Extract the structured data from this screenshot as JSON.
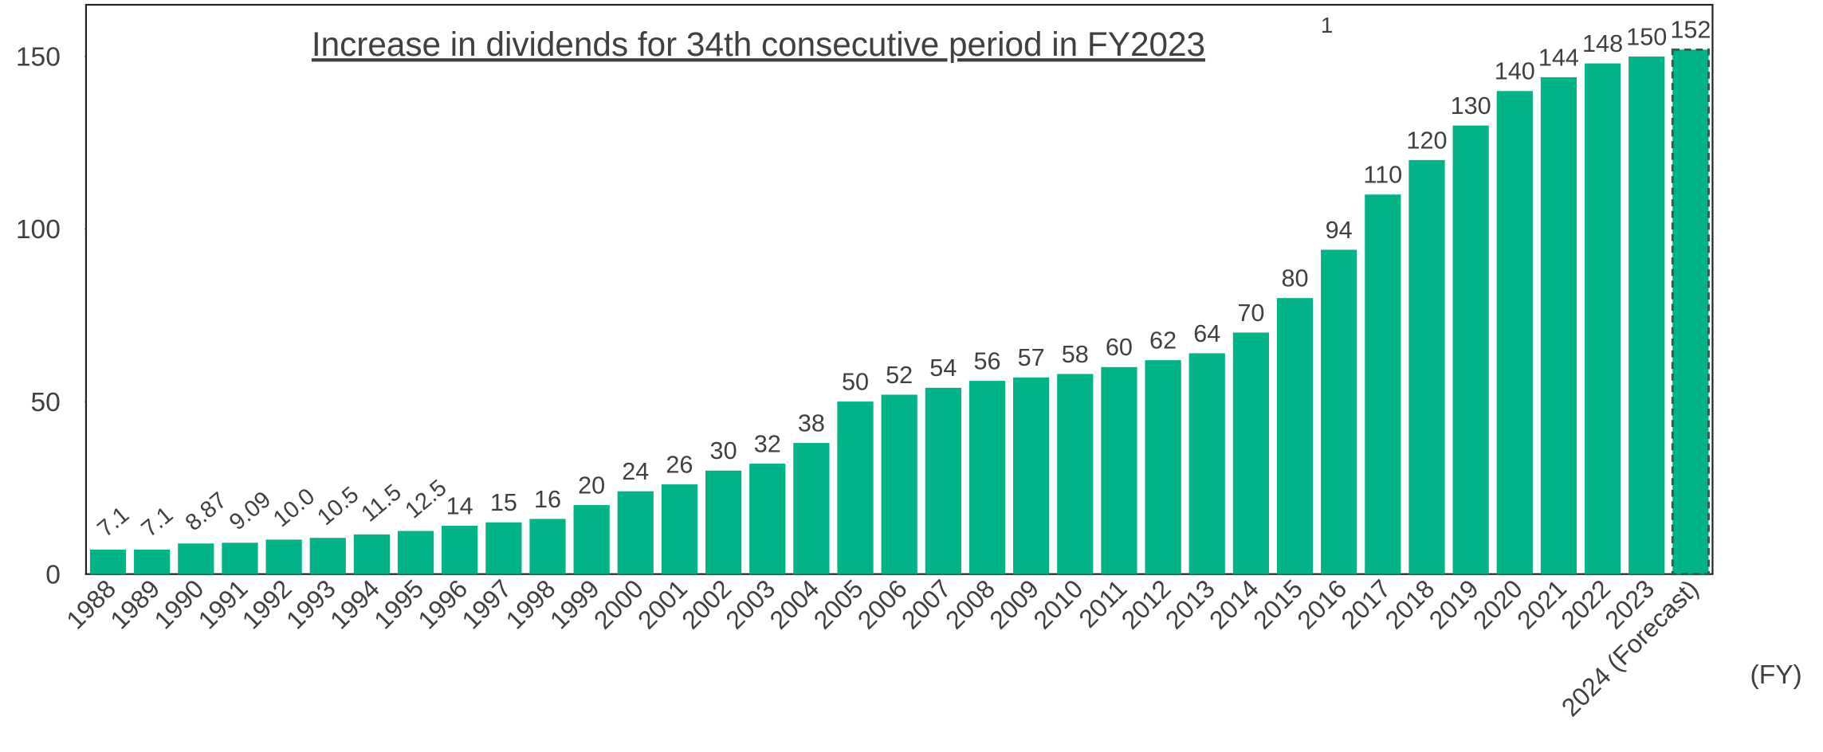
{
  "chart_data": {
    "type": "bar",
    "title": "Increase in dividends for 34th consecutive period in FY2023",
    "title_note": "1",
    "x_label": "(FY)",
    "categories": [
      "1988",
      "1989",
      "1990",
      "1991",
      "1992",
      "1993",
      "1994",
      "1995",
      "1996",
      "1997",
      "1998",
      "1999",
      "2000",
      "2001",
      "2002",
      "2003",
      "2004",
      "2005",
      "2006",
      "2007",
      "2008",
      "2009",
      "2010",
      "2011",
      "2012",
      "2013",
      "2014",
      "2015",
      "2016",
      "2017",
      "2018",
      "2019",
      "2020",
      "2021",
      "2022",
      "2023",
      "2024 (Forecast)"
    ],
    "values": [
      7.1,
      7.1,
      8.87,
      9.09,
      10.0,
      10.5,
      11.5,
      12.5,
      14,
      15,
      16,
      20,
      24,
      26,
      30,
      32,
      38,
      50,
      52,
      54,
      56,
      57,
      58,
      60,
      62,
      64,
      70,
      80,
      94,
      110,
      120,
      130,
      140,
      144,
      148,
      150,
      152
    ],
    "value_labels": [
      "7.1",
      "7.1",
      "8.87",
      "9.09",
      "10.0",
      "10.5",
      "11.5",
      "12.5",
      "14",
      "15",
      "16",
      "20",
      "24",
      "26",
      "30",
      "32",
      "38",
      "50",
      "52",
      "54",
      "56",
      "57",
      "58",
      "60",
      "62",
      "64",
      "70",
      "80",
      "94",
      "110",
      "120",
      "130",
      "140",
      "144",
      "148",
      "150",
      "152"
    ],
    "color": "#00b487",
    "ylim": [
      0,
      165
    ],
    "yticks": [
      0,
      50,
      100,
      150
    ],
    "grid": false
  }
}
